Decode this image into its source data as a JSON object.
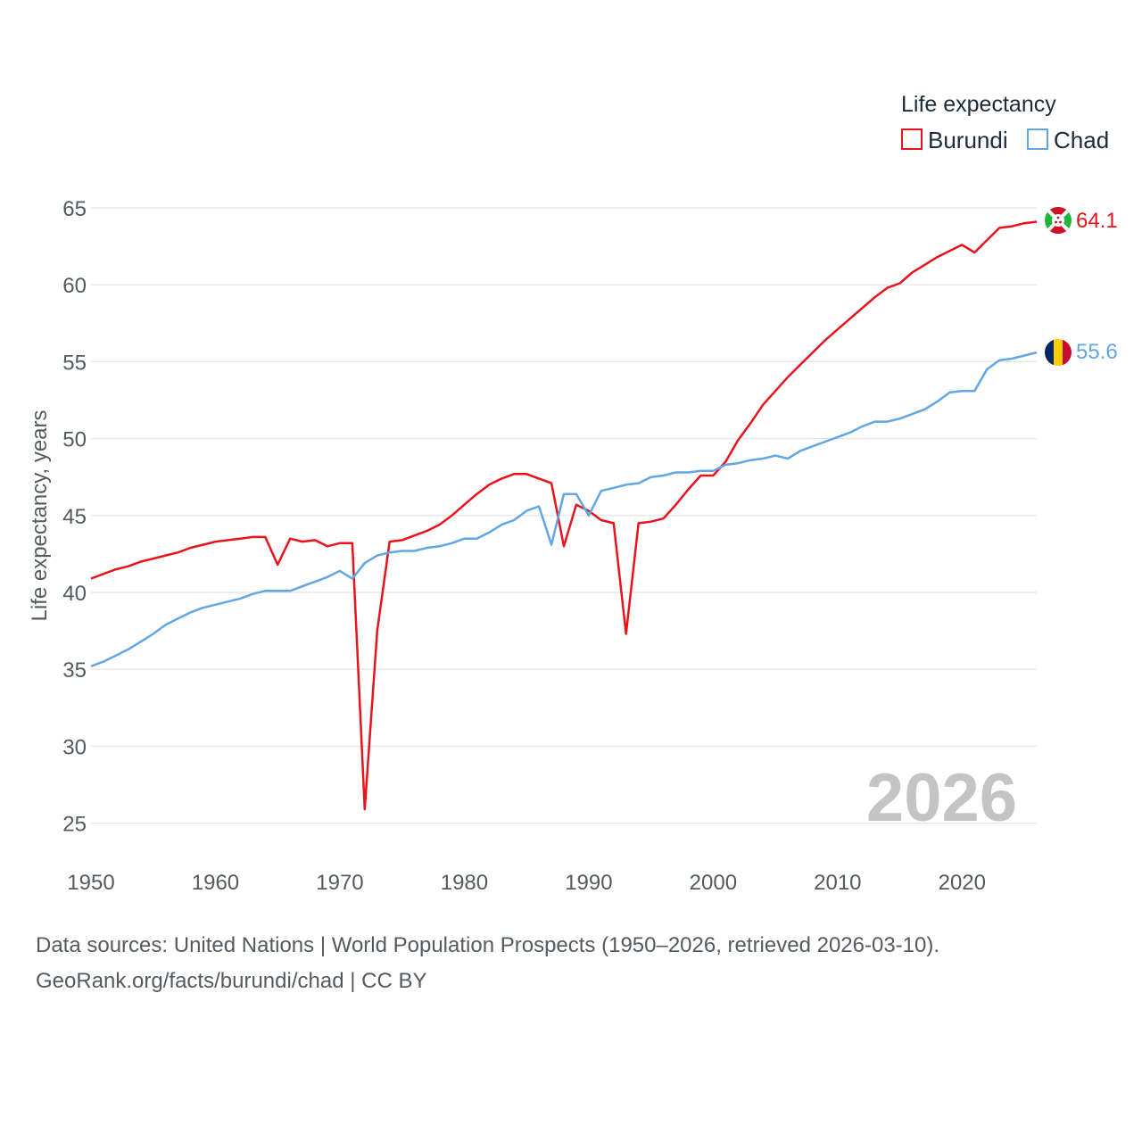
{
  "chart_data": {
    "type": "line",
    "legend_title": "Life expectancy",
    "ylabel": "Life expectancy, years",
    "xlabel": "",
    "year_label": "2026",
    "xlim": [
      1950,
      2026
    ],
    "ylim": [
      23,
      66
    ],
    "x_ticks": [
      1950,
      1960,
      1970,
      1980,
      1990,
      2000,
      2010,
      2020
    ],
    "y_ticks": [
      25,
      30,
      35,
      40,
      45,
      50,
      55,
      60,
      65
    ],
    "x": [
      1950,
      1951,
      1952,
      1953,
      1954,
      1955,
      1956,
      1957,
      1958,
      1959,
      1960,
      1961,
      1962,
      1963,
      1964,
      1965,
      1966,
      1967,
      1968,
      1969,
      1970,
      1971,
      1972,
      1973,
      1974,
      1975,
      1976,
      1977,
      1978,
      1979,
      1980,
      1981,
      1982,
      1983,
      1984,
      1985,
      1986,
      1987,
      1988,
      1989,
      1990,
      1991,
      1992,
      1993,
      1994,
      1995,
      1996,
      1997,
      1998,
      1999,
      2000,
      2001,
      2002,
      2003,
      2004,
      2005,
      2006,
      2007,
      2008,
      2009,
      2010,
      2011,
      2012,
      2013,
      2014,
      2015,
      2016,
      2017,
      2018,
      2019,
      2020,
      2021,
      2022,
      2023,
      2024,
      2025,
      2026
    ],
    "series": [
      {
        "name": "Burundi",
        "color": "#e8131b",
        "end_label": "64.1",
        "values": [
          40.9,
          41.2,
          41.5,
          41.7,
          42.0,
          42.2,
          42.4,
          42.6,
          42.9,
          43.1,
          43.3,
          43.4,
          43.5,
          43.6,
          43.6,
          41.8,
          43.5,
          43.3,
          43.4,
          43.0,
          43.2,
          43.2,
          25.9,
          37.5,
          43.3,
          43.4,
          43.7,
          44.0,
          44.4,
          45.0,
          45.7,
          46.4,
          47.0,
          47.4,
          47.7,
          47.7,
          47.4,
          47.1,
          43.0,
          45.7,
          45.3,
          44.7,
          44.5,
          37.3,
          44.5,
          44.6,
          44.8,
          45.7,
          46.7,
          47.6,
          47.6,
          48.5,
          49.9,
          51.0,
          52.2,
          53.1,
          54.0,
          54.8,
          55.6,
          56.4,
          57.1,
          57.8,
          58.5,
          59.2,
          59.8,
          60.1,
          60.8,
          61.3,
          61.8,
          62.2,
          62.6,
          62.1,
          62.9,
          63.7,
          63.8,
          64.0,
          64.1
        ]
      },
      {
        "name": "Chad",
        "color": "#62a6e4",
        "end_label": "55.6",
        "values": [
          35.2,
          35.5,
          35.9,
          36.3,
          36.8,
          37.3,
          37.9,
          38.3,
          38.7,
          39.0,
          39.2,
          39.4,
          39.6,
          39.9,
          40.1,
          40.1,
          40.1,
          40.4,
          40.7,
          41.0,
          41.4,
          40.9,
          41.9,
          42.4,
          42.6,
          42.7,
          42.7,
          42.9,
          43.0,
          43.2,
          43.5,
          43.5,
          43.9,
          44.4,
          44.7,
          45.3,
          45.6,
          43.1,
          46.4,
          46.4,
          45.0,
          46.6,
          46.8,
          47.0,
          47.1,
          47.5,
          47.6,
          47.8,
          47.8,
          47.9,
          47.9,
          48.3,
          48.4,
          48.6,
          48.7,
          48.9,
          48.7,
          49.2,
          49.5,
          49.8,
          50.1,
          50.4,
          50.8,
          51.1,
          51.1,
          51.3,
          51.6,
          51.9,
          52.4,
          53.0,
          53.1,
          53.1,
          54.5,
          55.1,
          55.2,
          55.4,
          55.6
        ]
      }
    ]
  },
  "source": {
    "line1": "Data sources: United Nations | World Population Prospects (1950–2026, retrieved 2026-03-10).",
    "line2": "GeoRank.org/facts/burundi/chad | CC BY"
  }
}
